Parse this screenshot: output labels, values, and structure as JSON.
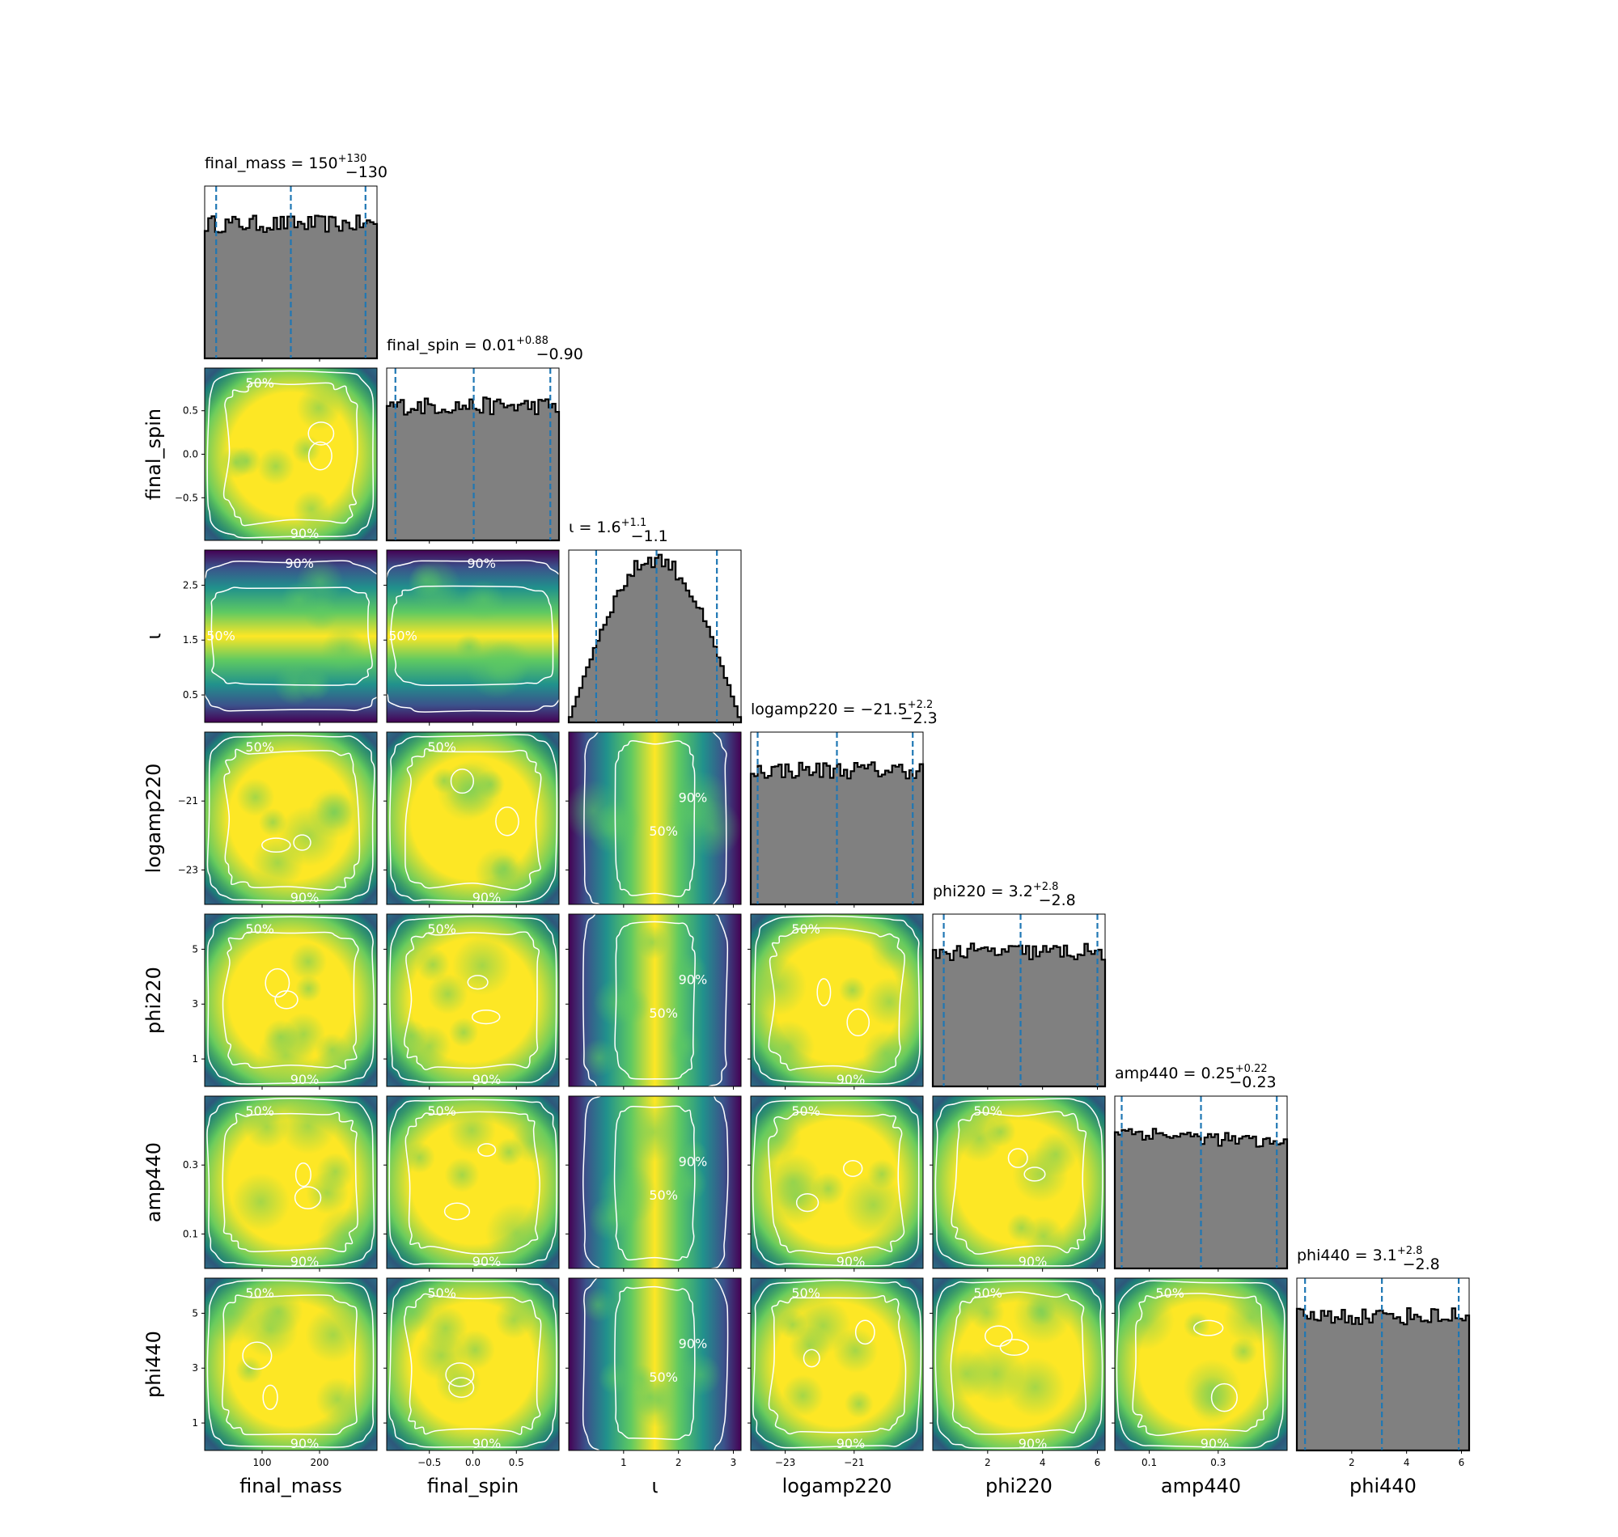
{
  "chart_data": {
    "type": "corner",
    "parameters": [
      {
        "key": "final_mass",
        "label": "final_mass",
        "range": [
          0,
          300
        ],
        "ticks": [
          100,
          200
        ],
        "tick_labels": [
          "100",
          "200"
        ],
        "median": 150,
        "lower": 20,
        "upper": 280,
        "title": "final_mass = 150",
        "err_plus": "+130",
        "err_minus": "−130",
        "hist_shape": "flat"
      },
      {
        "key": "final_spin",
        "label": "final_spin",
        "range": [
          -0.99,
          0.99
        ],
        "ticks": [
          -0.5,
          0.0,
          0.5
        ],
        "tick_labels": [
          "−0.5",
          "0.0",
          "0.5"
        ],
        "median": 0.01,
        "lower": -0.89,
        "upper": 0.89,
        "title": "final_spin = 0.01",
        "err_plus": "+0.88",
        "err_minus": "−0.90",
        "hist_shape": "flat"
      },
      {
        "key": "inclination",
        "label": "ι",
        "range": [
          0,
          3.14
        ],
        "ticks": [
          1,
          2,
          3
        ],
        "tick_labels": [
          "1",
          "2",
          "3"
        ],
        "y_ticks": [
          0.5,
          1.5,
          2.5
        ],
        "y_tick_labels": [
          "0.5",
          "1.5",
          "2.5"
        ],
        "median": 1.6,
        "lower": 0.5,
        "upper": 2.7,
        "title": "ι = 1.6",
        "err_plus": "+1.1",
        "err_minus": "−1.1",
        "hist_shape": "sine"
      },
      {
        "key": "logamp220",
        "label": "logamp220",
        "range": [
          -24,
          -19
        ],
        "ticks": [
          -23,
          -21
        ],
        "tick_labels": [
          "−23",
          "−21"
        ],
        "median": -21.5,
        "lower": -23.8,
        "upper": -19.3,
        "title": "logamp220 = −21.5",
        "err_plus": "+2.2",
        "err_minus": "−2.3",
        "hist_shape": "flat"
      },
      {
        "key": "phi220",
        "label": "phi220",
        "range": [
          0,
          6.28
        ],
        "ticks": [
          2,
          4,
          6
        ],
        "tick_labels": [
          "2",
          "4",
          "6"
        ],
        "y_ticks": [
          1,
          3,
          5
        ],
        "y_tick_labels": [
          "1",
          "3",
          "5"
        ],
        "median": 3.2,
        "lower": 0.4,
        "upper": 6.0,
        "title": "phi220 = 3.2",
        "err_plus": "+2.8",
        "err_minus": "−2.8",
        "hist_shape": "flat"
      },
      {
        "key": "amp440",
        "label": "amp440",
        "range": [
          0,
          0.5
        ],
        "ticks": [
          0.1,
          0.3
        ],
        "tick_labels": [
          "0.1",
          "0.3"
        ],
        "median": 0.25,
        "lower": 0.02,
        "upper": 0.47,
        "title": "amp440 = 0.25",
        "err_plus": "+0.22",
        "err_minus": "−0.23",
        "hist_shape": "declining"
      },
      {
        "key": "phi440",
        "label": "phi440",
        "range": [
          0,
          6.28
        ],
        "ticks": [
          2,
          4,
          6
        ],
        "tick_labels": [
          "2",
          "4",
          "6"
        ],
        "y_ticks": [
          1,
          3,
          5
        ],
        "y_tick_labels": [
          "1",
          "3",
          "5"
        ],
        "median": 3.1,
        "lower": 0.3,
        "upper": 5.9,
        "title": "phi440 = 3.1",
        "err_plus": "+2.8",
        "err_minus": "−2.8",
        "hist_shape": "flat"
      }
    ],
    "contour_levels": [
      "50%",
      "90%"
    ],
    "histogram": {
      "fill_color": "#808080",
      "edge_color": "#000000",
      "bins": 50
    },
    "quantile_line_color": "#1f77b4",
    "density_colormap": [
      "#440154",
      "#3b528b",
      "#21918c",
      "#5ec962",
      "#fde725"
    ],
    "contour_color": "#ffffff"
  }
}
